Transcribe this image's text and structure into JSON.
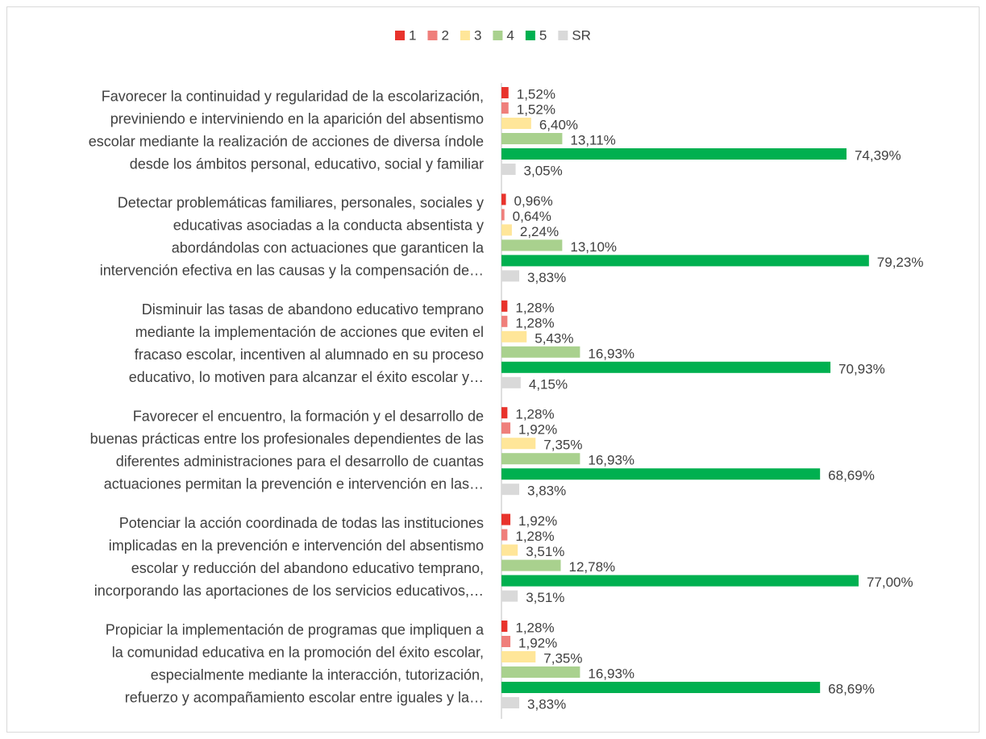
{
  "chart_data": {
    "type": "bar",
    "orientation": "horizontal",
    "categories": [
      [
        "Favorecer la continuidad y regularidad de la escolarización,",
        "previniendo e interviniendo en la aparición del absentismo",
        "escolar mediante la realización de acciones de diversa índole",
        "desde los ámbitos personal, educativo, social y familiar"
      ],
      [
        "Detectar problemáticas familiares, personales, sociales y",
        "educativas asociadas a la conducta absentista y",
        "abordándolas con actuaciones que garanticen la",
        "intervención efectiva en las causas y la compensación de…"
      ],
      [
        "Disminuir las tasas de abandono educativo temprano",
        "mediante la implementación de acciones que eviten el",
        "fracaso escolar, incentiven al alumnado en su proceso",
        "educativo, lo motiven para alcanzar el éxito escolar y…"
      ],
      [
        "Favorecer el encuentro, la formación y el desarrollo de",
        "buenas prácticas entre los profesionales dependientes de las",
        "diferentes administraciones para el desarrollo de cuantas",
        "actuaciones permitan la prevención e intervención en las…"
      ],
      [
        "Potenciar la acción coordinada de todas las instituciones",
        "implicadas en la prevención e intervención del absentismo",
        "escolar y reducción del abandono educativo temprano,",
        "incorporando las aportaciones de los servicios educativos,…"
      ],
      [
        "Propiciar la implementación de programas que impliquen a",
        "la comunidad educativa en la promoción del éxito escolar,",
        "especialmente mediante la interacción, tutorización,",
        "refuerzo y acompañamiento escolar entre iguales y la…"
      ]
    ],
    "series": [
      {
        "name": "1",
        "color": "#e8332c",
        "values": [
          1.52,
          0.96,
          1.28,
          1.28,
          1.92,
          1.28
        ],
        "value_labels": [
          "1,52%",
          "0,96%",
          "1,28%",
          "1,28%",
          "1,92%",
          "1,28%"
        ]
      },
      {
        "name": "2",
        "color": "#ef7f7b",
        "values": [
          1.52,
          0.64,
          1.28,
          1.92,
          1.28,
          1.92
        ],
        "value_labels": [
          "1,52%",
          "0,64%",
          "1,28%",
          "1,92%",
          "1,28%",
          "1,92%"
        ]
      },
      {
        "name": "3",
        "color": "#ffe699",
        "values": [
          6.4,
          2.24,
          5.43,
          7.35,
          3.51,
          7.35
        ],
        "value_labels": [
          "6,40%",
          "2,24%",
          "5,43%",
          "7,35%",
          "3,51%",
          "7,35%"
        ]
      },
      {
        "name": "4",
        "color": "#a9d18e",
        "values": [
          13.11,
          13.1,
          16.93,
          16.93,
          12.78,
          16.93
        ],
        "value_labels": [
          "13,11%",
          "13,10%",
          "16,93%",
          "16,93%",
          "12,78%",
          "16,93%"
        ]
      },
      {
        "name": "5",
        "color": "#00b050",
        "values": [
          74.39,
          79.23,
          70.93,
          68.69,
          77.0,
          68.69
        ],
        "value_labels": [
          "74,39%",
          "79,23%",
          "70,93%",
          "68,69%",
          "77,00%",
          "68,69%"
        ]
      },
      {
        "name": "SR",
        "color": "#d9d9d9",
        "values": [
          3.05,
          3.83,
          4.15,
          3.83,
          3.51,
          3.83
        ],
        "value_labels": [
          "3,05%",
          "3,83%",
          "4,15%",
          "3,83%",
          "3,51%",
          "3,83%"
        ]
      }
    ],
    "legend": "top"
  }
}
